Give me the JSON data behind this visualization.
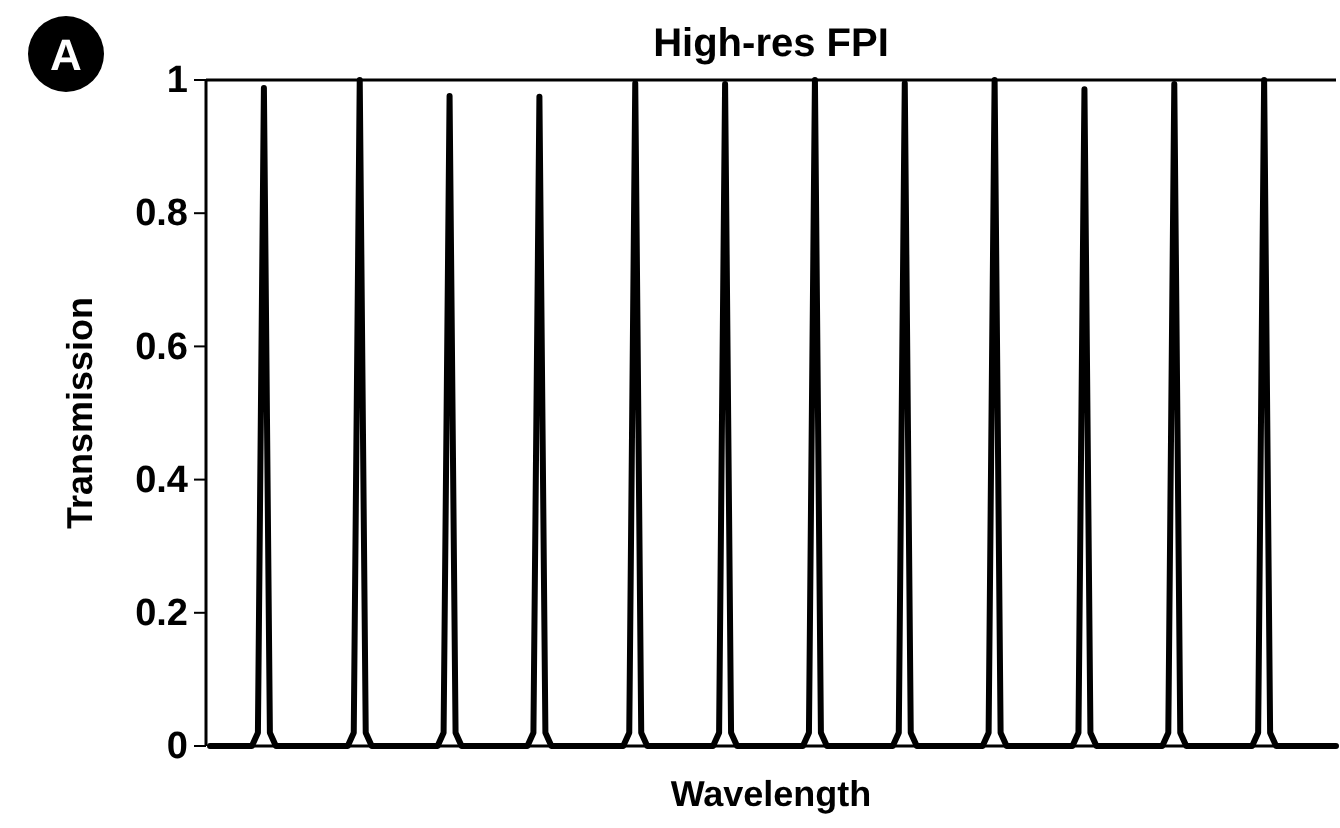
{
  "chart_data": {
    "type": "line",
    "title": "High-res FPI",
    "xlabel": "Wavelength",
    "ylabel": "Transmission",
    "annotations": [
      "A"
    ],
    "categories": [
      null,
      null,
      null,
      null,
      null,
      null,
      null,
      null,
      null,
      null,
      null,
      null,
      null,
      null,
      null,
      null,
      null,
      null,
      null,
      null,
      null,
      null,
      null,
      null,
      null,
      null,
      null,
      null,
      null,
      null,
      null,
      null,
      null,
      null,
      null,
      null,
      null,
      null,
      null,
      null,
      null,
      null,
      null,
      null,
      null,
      null,
      null,
      null,
      null,
      null,
      null,
      null,
      null,
      null,
      null,
      null,
      null,
      null,
      null,
      null,
      null,
      null,
      null,
      null,
      null,
      null,
      null,
      null,
      null,
      null,
      null,
      null,
      null,
      null,
      null,
      null,
      null,
      null,
      null,
      null,
      null,
      null,
      null,
      null,
      null,
      null,
      null,
      null,
      null,
      null,
      null,
      null,
      null,
      null,
      null,
      null,
      null,
      null,
      null,
      null,
      null,
      null,
      null,
      null,
      null,
      null,
      null,
      null,
      null,
      null,
      null,
      null,
      null,
      null,
      null,
      null,
      null,
      null,
      null,
      null,
      null,
      null,
      null,
      null,
      null,
      null,
      null,
      null,
      null,
      null,
      null,
      null,
      null,
      null,
      null,
      null,
      null,
      null,
      null,
      null,
      null,
      null,
      null,
      null,
      null,
      null,
      null,
      null,
      null,
      null,
      null,
      null,
      null,
      null,
      null,
      null,
      null,
      null,
      null,
      null,
      null,
      null,
      null,
      null,
      null,
      null,
      null,
      null,
      null,
      null,
      null,
      null,
      null,
      null,
      null,
      null,
      null,
      null,
      null,
      null,
      null,
      null,
      null,
      null,
      null,
      null,
      null,
      null,
      null
    ],
    "series": [
      {
        "color": "#000000",
        "values": [
          0,
          0,
          0,
          0,
          0,
          0,
          0,
          0,
          0.02,
          0.988,
          0.02,
          0,
          0,
          0,
          0,
          0,
          0,
          0,
          0,
          0,
          0,
          0,
          0,
          0,
          0.02,
          1,
          0.02,
          0,
          0,
          0,
          0,
          0,
          0,
          0,
          0,
          0,
          0,
          0,
          0,
          0.02,
          0.976,
          0.02,
          0,
          0,
          0,
          0,
          0,
          0,
          0,
          0,
          0,
          0,
          0,
          0,
          0.02,
          0.975,
          0.02,
          0,
          0,
          0,
          0,
          0,
          0,
          0,
          0,
          0,
          0,
          0,
          0,
          0,
          0.02,
          0.995,
          0.02,
          0,
          0,
          0,
          0,
          0,
          0,
          0,
          0,
          0,
          0,
          0,
          0,
          0.02,
          0.994,
          0.02,
          0,
          0,
          0,
          0,
          0,
          0,
          0,
          0,
          0,
          0,
          0,
          0,
          0.02,
          1,
          0.02,
          0,
          0,
          0,
          0,
          0,
          0,
          0,
          0,
          0,
          0,
          0,
          0,
          0.02,
          0.995,
          0.02,
          0,
          0,
          0,
          0,
          0,
          0,
          0,
          0,
          0,
          0,
          0,
          0,
          0.02,
          1,
          0.02,
          0,
          0,
          0,
          0,
          0,
          0,
          0,
          0,
          0,
          0,
          0,
          0,
          0.02,
          0.986,
          0.02,
          0,
          0,
          0,
          0,
          0,
          0,
          0,
          0,
          0,
          0,
          0,
          0,
          0.02,
          0.994,
          0.02,
          0,
          0,
          0,
          0,
          0,
          0,
          0,
          0,
          0,
          0,
          0,
          0,
          0.02,
          1,
          0.02,
          0,
          0,
          0,
          0,
          0,
          0,
          0,
          0,
          0,
          0,
          0
        ]
      }
    ],
    "ylim": [
      0,
      1
    ],
    "yticks": [
      0,
      0.2,
      0.4,
      0.6,
      0.8,
      1
    ],
    "grid": false,
    "marker": "none",
    "line_style": "solid"
  }
}
